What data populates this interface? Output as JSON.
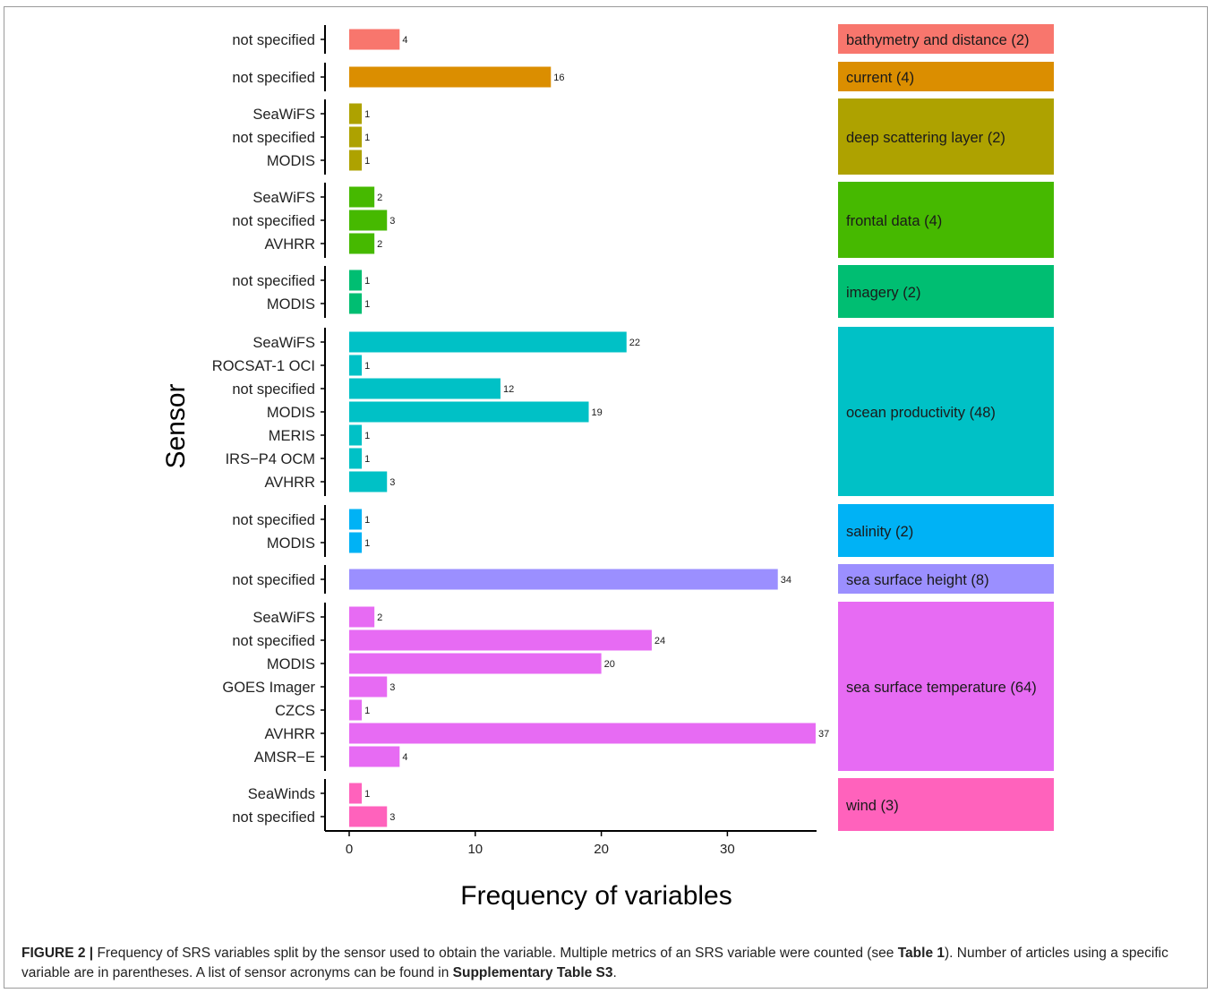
{
  "chart_data": {
    "type": "bar",
    "orientation": "horizontal",
    "xlabel": "Frequency of variables",
    "ylabel": "Sensor",
    "xlim": [
      0,
      37
    ],
    "xticks": [
      0,
      10,
      20,
      30
    ],
    "grid": false,
    "facets": [
      {
        "label": "bathymetry and distance (2)",
        "color": "#F8766D",
        "bars": [
          {
            "sensor": "not specified",
            "value": 4
          }
        ]
      },
      {
        "label": "current (4)",
        "color": "#DB8E00",
        "bars": [
          {
            "sensor": "not specified",
            "value": 16
          }
        ]
      },
      {
        "label": "deep scattering layer (2)",
        "color": "#AEA200",
        "bars": [
          {
            "sensor": "SeaWiFS",
            "value": 1
          },
          {
            "sensor": "not specified",
            "value": 1
          },
          {
            "sensor": "MODIS",
            "value": 1
          }
        ]
      },
      {
        "label": "frontal data (4)",
        "color": "#46B900",
        "bars": [
          {
            "sensor": "SeaWiFS",
            "value": 2
          },
          {
            "sensor": "not specified",
            "value": 3
          },
          {
            "sensor": "AVHRR",
            "value": 2
          }
        ]
      },
      {
        "label": "imagery (2)",
        "color": "#00BE72",
        "bars": [
          {
            "sensor": "not specified",
            "value": 1
          },
          {
            "sensor": "MODIS",
            "value": 1
          }
        ]
      },
      {
        "label": "ocean productivity (48)",
        "color": "#00C1C6",
        "bars": [
          {
            "sensor": "SeaWiFS",
            "value": 22
          },
          {
            "sensor": "ROCSAT-1 OCI",
            "value": 1
          },
          {
            "sensor": "not specified",
            "value": 12
          },
          {
            "sensor": "MODIS",
            "value": 19
          },
          {
            "sensor": "MERIS",
            "value": 1
          },
          {
            "sensor": "IRS−P4 OCM",
            "value": 1
          },
          {
            "sensor": "AVHRR",
            "value": 3
          }
        ]
      },
      {
        "label": "salinity (2)",
        "color": "#00B2F5",
        "bars": [
          {
            "sensor": "not specified",
            "value": 1
          },
          {
            "sensor": "MODIS",
            "value": 1
          }
        ]
      },
      {
        "label": "sea surface height (8)",
        "color": "#9B8FFF",
        "bars": [
          {
            "sensor": "not specified",
            "value": 34
          }
        ]
      },
      {
        "label": "sea surface temperature (64)",
        "color": "#E76BF3",
        "bars": [
          {
            "sensor": "SeaWiFS",
            "value": 2
          },
          {
            "sensor": "not specified",
            "value": 24
          },
          {
            "sensor": "MODIS",
            "value": 20
          },
          {
            "sensor": "GOES Imager",
            "value": 3
          },
          {
            "sensor": "CZCS",
            "value": 1
          },
          {
            "sensor": "AVHRR",
            "value": 37
          },
          {
            "sensor": "AMSR−E",
            "value": 4
          }
        ]
      },
      {
        "label": "wind (3)",
        "color": "#FF62BC",
        "bars": [
          {
            "sensor": "SeaWinds",
            "value": 1
          },
          {
            "sensor": "not specified",
            "value": 3
          }
        ]
      }
    ]
  },
  "caption": {
    "figure_label": "FIGURE 2 |",
    "text_1": " Frequency of SRS variables split by the sensor used to obtain the variable. Multiple metrics of an SRS variable were counted (see ",
    "ref_1": "Table 1",
    "text_2": "). Number of articles using a specific variable are in parentheses. A list of sensor acronyms can be found in ",
    "ref_2": "Supplementary Table S3",
    "text_3": "."
  }
}
